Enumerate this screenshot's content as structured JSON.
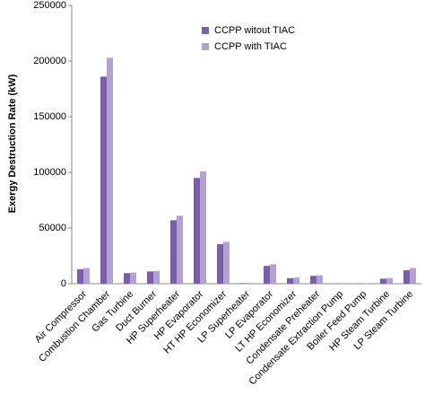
{
  "chart_data": {
    "type": "bar",
    "y_label": "Exergy Destruction Rate (kW)",
    "categories": [
      "Air Compressor",
      "Combustion Chamber",
      "Gas Turbine",
      "Duct Burner",
      "HP Superheater",
      "HP Evaporator",
      "HT HP Economizer",
      "LP Superheater",
      "LP Evaporator",
      "LT HP Economizer",
      "Condensate Preheater",
      "Condensate Extraction Pump",
      "Boiler Feed Pump",
      "HP Steam Turbine",
      "LP Steam Turbine"
    ],
    "series": [
      {
        "name": "CCPP witout TIAC",
        "color": "#7b5ea7",
        "values": [
          13000,
          186000,
          9500,
          11000,
          57000,
          95000,
          35500,
          500,
          16000,
          5000,
          7000,
          200,
          300,
          4500,
          12000
        ]
      },
      {
        "name": "CCPP with TIAC",
        "color": "#b3a2cf",
        "values": [
          14000,
          203000,
          10000,
          11500,
          61000,
          101000,
          37500,
          600,
          17500,
          5500,
          7500,
          200,
          300,
          5000,
          14000
        ]
      }
    ],
    "ylim": [
      0,
      250000
    ],
    "yticks": [
      0,
      50000,
      100000,
      150000,
      200000,
      250000
    ],
    "legend": "upper center"
  }
}
